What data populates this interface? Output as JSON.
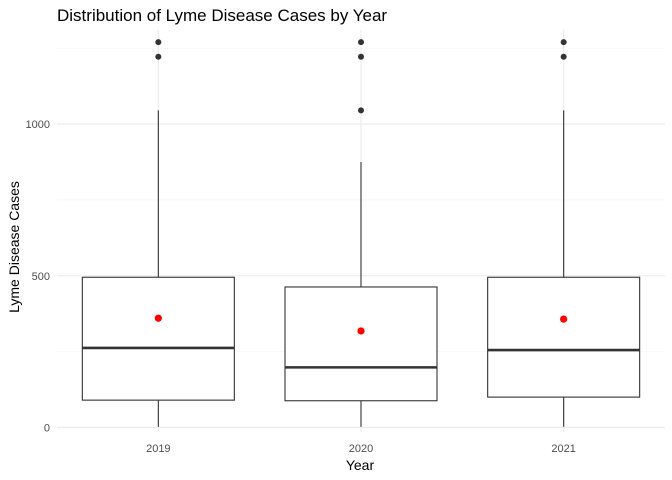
{
  "chart_data": {
    "type": "boxplot",
    "title": "Distribution of Lyme Disease Cases by Year",
    "xlabel": "Year",
    "ylabel": "Lyme Disease Cases",
    "categories": [
      "2019",
      "2020",
      "2021"
    ],
    "yticks": [
      0,
      500,
      1000
    ],
    "ylim": [
      -15,
      1310
    ],
    "grid": true,
    "legend": "none",
    "colors": {
      "box": "#333333",
      "median": "#333333",
      "mean_point": "#ff0000",
      "outlier": "#333333"
    },
    "boxes": [
      {
        "category": "2019",
        "min": 2,
        "q1": 90,
        "median": 262,
        "q3": 495,
        "max": 1045,
        "mean": 360,
        "outliers": [
          1222,
          1270
        ]
      },
      {
        "category": "2020",
        "min": 2,
        "q1": 88,
        "median": 198,
        "q3": 463,
        "max": 875,
        "mean": 318,
        "outliers": [
          1045,
          1222,
          1270
        ]
      },
      {
        "category": "2021",
        "min": 2,
        "q1": 100,
        "median": 255,
        "q3": 495,
        "max": 1045,
        "mean": 357,
        "outliers": [
          1222,
          1270
        ]
      }
    ]
  }
}
